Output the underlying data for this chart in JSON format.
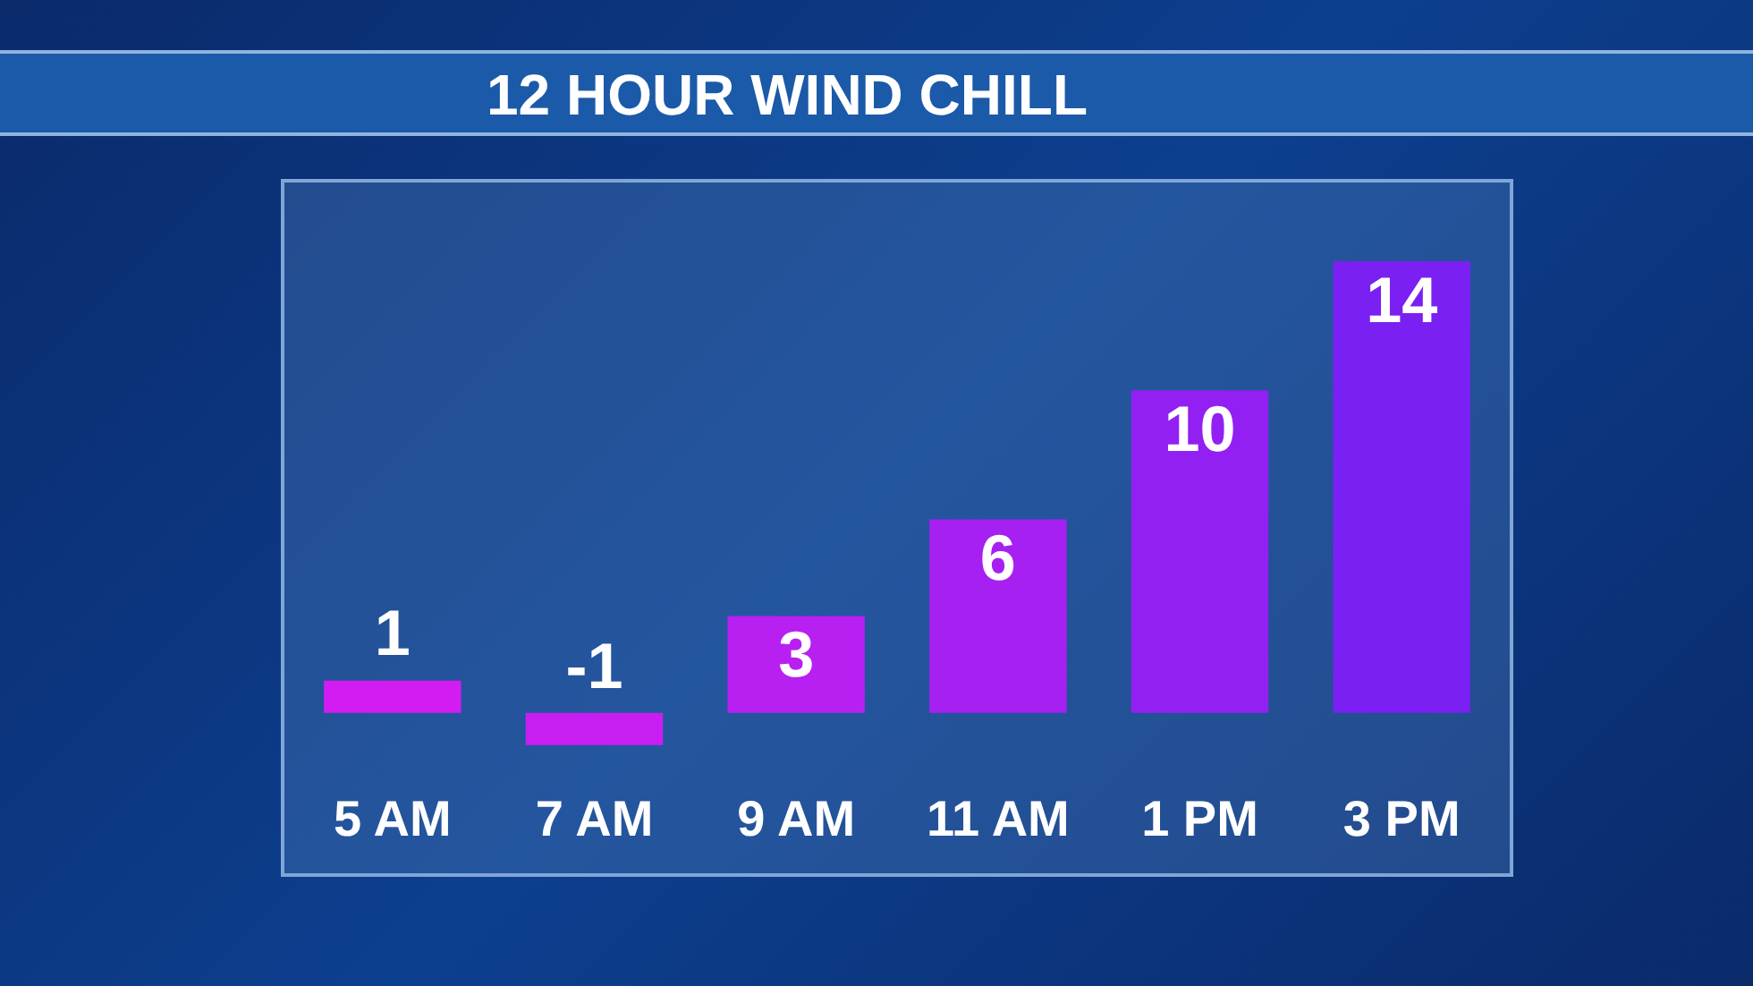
{
  "chart_data": {
    "type": "bar",
    "title": "12 HOUR WIND CHILL",
    "categories": [
      "5 AM",
      "7 AM",
      "9 AM",
      "11 AM",
      "1 PM",
      "3 PM"
    ],
    "values": [
      1,
      -1,
      3,
      6,
      10,
      14
    ],
    "colors": [
      "#d21cf2",
      "#c91ef2",
      "#b820f2",
      "#a620f2",
      "#9320f2",
      "#7b20f2"
    ],
    "data_labels": true,
    "legend": false,
    "grid": false
  }
}
